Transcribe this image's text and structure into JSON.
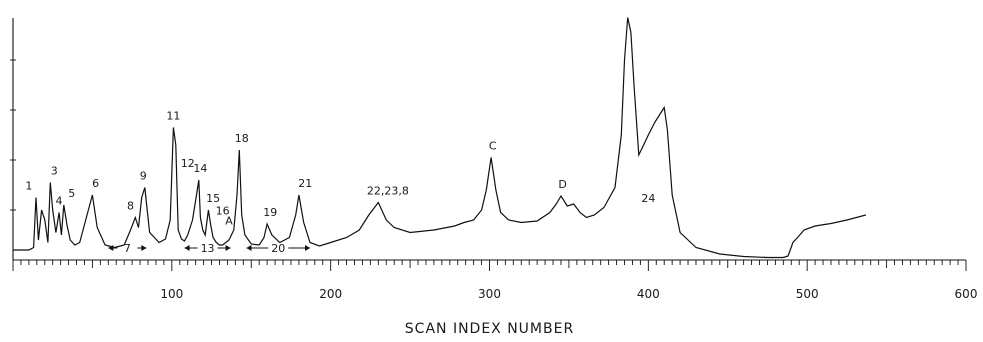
{
  "chart_data": {
    "type": "line",
    "title": "",
    "xlabel": "SCAN INDEX NUMBER",
    "ylabel": "",
    "xlim": [
      0,
      600
    ],
    "ylim": [
      0,
      5
    ],
    "x_ticks": [
      100,
      200,
      300,
      400,
      500,
      600
    ],
    "x_tick_labels": [
      "100",
      "200",
      "300",
      "400",
      "500",
      "600"
    ],
    "minor_tick_step": 5,
    "grid": false,
    "series": [
      {
        "x": [
          0,
          10,
          13,
          14.5,
          16,
          18,
          20,
          22,
          23.5,
          25,
          27,
          29,
          30.5,
          32,
          34,
          36,
          39,
          42,
          47,
          50,
          53,
          58,
          64,
          70,
          74,
          77,
          79,
          81,
          83,
          86,
          92,
          96,
          99,
          101,
          102.5,
          104,
          106,
          108,
          110,
          113,
          115,
          117,
          118,
          119.5,
          121,
          123,
          124.5,
          126,
          128,
          130,
          132,
          136,
          139,
          141,
          142.5,
          144,
          146,
          150,
          155,
          158,
          160,
          163,
          168,
          174,
          178,
          180,
          183,
          187,
          193,
          200,
          210,
          218,
          224,
          230,
          235,
          240,
          250,
          265,
          278,
          284,
          290,
          295,
          298,
          301,
          304,
          307,
          312,
          320,
          330,
          338,
          342,
          345,
          349,
          353,
          357,
          361,
          366,
          372,
          379,
          383,
          385,
          387,
          389,
          391,
          394,
          397,
          400,
          404,
          408,
          410,
          412,
          415,
          420,
          430,
          445,
          460,
          475,
          485,
          488,
          491,
          494,
          498,
          505,
          515,
          525,
          537
        ],
        "y": [
          0.2,
          0.2,
          0.25,
          1.25,
          0.4,
          1.0,
          0.8,
          0.35,
          1.55,
          1.0,
          0.55,
          0.95,
          0.5,
          1.1,
          0.7,
          0.4,
          0.3,
          0.35,
          0.95,
          1.3,
          0.65,
          0.3,
          0.25,
          0.3,
          0.6,
          0.85,
          0.65,
          1.25,
          1.45,
          0.55,
          0.35,
          0.42,
          0.8,
          2.65,
          2.3,
          0.6,
          0.42,
          0.38,
          0.5,
          0.8,
          1.2,
          1.6,
          0.85,
          0.6,
          0.5,
          1.0,
          0.7,
          0.45,
          0.35,
          0.3,
          0.3,
          0.4,
          0.6,
          1.3,
          2.2,
          0.9,
          0.5,
          0.32,
          0.3,
          0.45,
          0.72,
          0.5,
          0.35,
          0.45,
          0.9,
          1.3,
          0.75,
          0.35,
          0.28,
          0.35,
          0.45,
          0.6,
          0.9,
          1.15,
          0.8,
          0.65,
          0.55,
          0.6,
          0.68,
          0.75,
          0.8,
          1.0,
          1.4,
          2.05,
          1.4,
          0.95,
          0.8,
          0.75,
          0.78,
          0.95,
          1.12,
          1.28,
          1.08,
          1.12,
          0.95,
          0.85,
          0.9,
          1.05,
          1.45,
          2.5,
          4.0,
          4.85,
          4.55,
          3.5,
          2.1,
          2.3,
          2.5,
          2.75,
          2.95,
          3.05,
          2.6,
          1.3,
          0.55,
          0.25,
          0.12,
          0.07,
          0.05,
          0.05,
          0.08,
          0.35,
          0.45,
          0.6,
          0.68,
          0.73,
          0.8,
          0.9
        ]
      }
    ],
    "annotations": [
      {
        "text": "1",
        "x": 10,
        "y": 1.25
      },
      {
        "text": "3",
        "x": 26,
        "y": 1.55
      },
      {
        "text": "4",
        "x": 29,
        "y": 0.95
      },
      {
        "text": "5",
        "x": 37,
        "y": 1.1
      },
      {
        "text": "6",
        "x": 52,
        "y": 1.3
      },
      {
        "text": "8",
        "x": 74,
        "y": 0.85
      },
      {
        "text": "9",
        "x": 82,
        "y": 1.45
      },
      {
        "text": "11",
        "x": 101,
        "y": 2.65
      },
      {
        "text": "12",
        "x": 110,
        "y": 1.7
      },
      {
        "text": "14",
        "x": 118,
        "y": 1.6
      },
      {
        "text": "15",
        "x": 126,
        "y": 1.0
      },
      {
        "text": "16",
        "x": 132,
        "y": 0.75
      },
      {
        "text": "A",
        "x": 136,
        "y": 0.55
      },
      {
        "text": "18",
        "x": 144,
        "y": 2.2
      },
      {
        "text": "19",
        "x": 162,
        "y": 0.72
      },
      {
        "text": "21",
        "x": 184,
        "y": 1.3
      },
      {
        "text": "22,23,8",
        "x": 236,
        "y": 1.15
      },
      {
        "text": "C",
        "x": 302,
        "y": 2.05
      },
      {
        "text": "D",
        "x": 346,
        "y": 1.28
      },
      {
        "text": "24",
        "x": 400,
        "y": 1.0
      }
    ],
    "ranges": [
      {
        "text": "7",
        "from": 60,
        "to": 84
      },
      {
        "text": "13",
        "from": 108,
        "to": 137
      },
      {
        "text": "20",
        "from": 147,
        "to": 187
      }
    ]
  }
}
